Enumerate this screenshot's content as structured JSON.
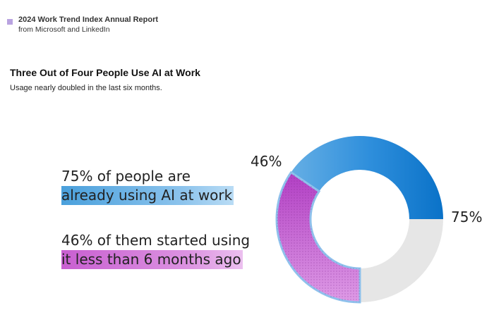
{
  "report": {
    "title": "2024 Work Trend Index Annual Report",
    "source": "from Microsoft and LinkedIn"
  },
  "callouts": [
    {
      "line1": "75% of people are",
      "line2": "already using AI at work"
    },
    {
      "line1": "46% of them started using",
      "line2": "it less than 6 months ago"
    }
  ],
  "colors": {
    "blue": "#1e84d6",
    "purple": "#c14fcf",
    "gray": "#e6e6e6",
    "marker": "#b9a3e0"
  },
  "chart_data": {
    "type": "pie",
    "title": "Three Out of Four People Use AI at Work",
    "subtitle": "Usage nearly doubled in the last six months.",
    "labels": [
      "75%",
      "46%"
    ],
    "values": [
      75,
      46
    ],
    "unit": "%",
    "segments": [
      {
        "label": "75%",
        "value": 75,
        "color": "#1e84d6",
        "fill": "gradient"
      },
      {
        "label": "46%",
        "value": 46,
        "color": "#c14fcf",
        "fill": "dotted"
      }
    ],
    "remainder_color": "#e6e6e6",
    "legend": "none"
  }
}
